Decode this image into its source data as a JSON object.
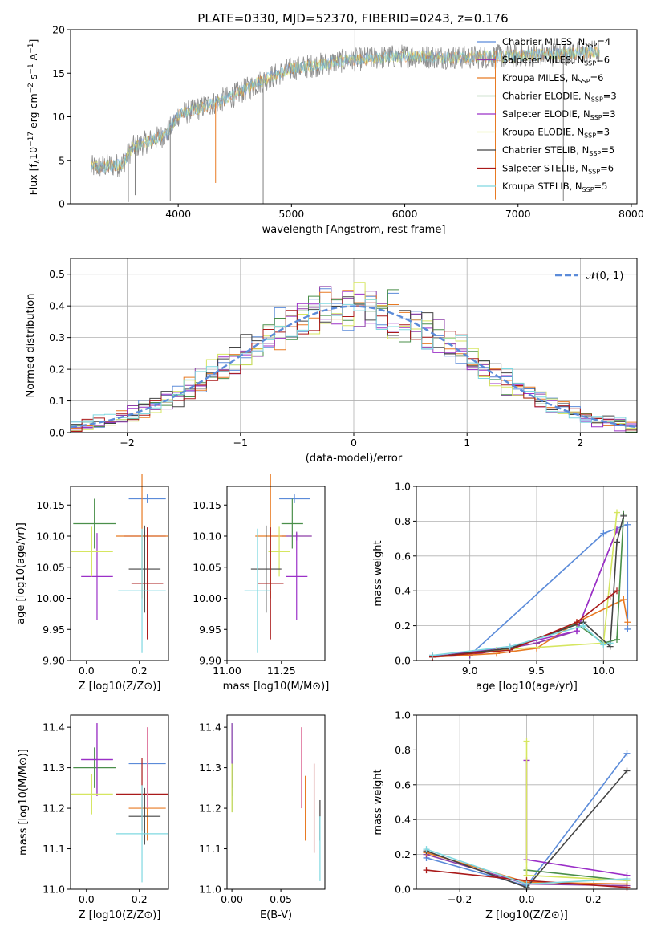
{
  "figure": {
    "title": "PLATE=0330, MJD=52370, FIBERID=0243, z=0.176"
  },
  "colors": {
    "Chabrier MILES": "#5b8bd9",
    "Salpeter MILES": "#8e3ea8",
    "Kroupa MILES": "#e87a23",
    "Chabrier ELODIE": "#4a8f4a",
    "Salpeter ELODIE": "#9b30c8",
    "Kroupa ELODIE": "#d6e660",
    "Chabrier STELIB": "#444444",
    "Salpeter STELIB": "#aa1a1a",
    "Kroupa STELIB": "#7fd8e0",
    "data": "#808080",
    "extra": "#e07aa0",
    "normal": "#5b8bd9"
  },
  "chart_data": [
    {
      "panel": "spectrum",
      "type": "line",
      "title": "PLATE=0330, MJD=52370, FIBERID=0243, z=0.176",
      "xlabel": "wavelength [Angstrom, rest frame]",
      "ylabel_parts": [
        "Flux [f",
        "λ",
        "10",
        "−17",
        " erg cm",
        "−2",
        " s",
        "−1",
        " A",
        "−1",
        "]"
      ],
      "xlim": [
        3050,
        8050
      ],
      "ylim": [
        0,
        20
      ],
      "xticks": [
        4000,
        5000,
        6000,
        7000,
        8000
      ],
      "yticks": [
        0,
        5,
        10,
        15,
        20
      ],
      "data_range": [
        3230,
        7720
      ],
      "envelope": [
        [
          3230,
          4.2
        ],
        [
          3500,
          4.5
        ],
        [
          3600,
          6.5
        ],
        [
          3900,
          8.0
        ],
        [
          4000,
          10.2
        ],
        [
          4300,
          11.5
        ],
        [
          4500,
          12.5
        ],
        [
          4800,
          14.5
        ],
        [
          5000,
          15.5
        ],
        [
          5500,
          16.5
        ],
        [
          6000,
          17.0
        ],
        [
          6500,
          16.8
        ],
        [
          7000,
          17.0
        ],
        [
          7500,
          17.3
        ],
        [
          7720,
          17.5
        ]
      ],
      "spikes": [
        [
          3560,
          0.2
        ],
        [
          3620,
          1.0
        ],
        [
          3930,
          0.3
        ],
        [
          4330,
          2.4
        ],
        [
          4750,
          0.0
        ],
        [
          5560,
          20.0
        ],
        [
          6800,
          0.5
        ],
        [
          7400,
          0.3
        ]
      ],
      "legend": [
        {
          "label": "Chabrier MILES, N",
          "n": "4"
        },
        {
          "label": "Salpeter MILES, N",
          "n": "6"
        },
        {
          "label": "Kroupa MILES, N",
          "n": "6"
        },
        {
          "label": "Chabrier ELODIE, N",
          "n": "3"
        },
        {
          "label": "Salpeter ELODIE, N",
          "n": "3"
        },
        {
          "label": "Kroupa ELODIE, N",
          "n": "3"
        },
        {
          "label": "Chabrier STELIB, N",
          "n": "5"
        },
        {
          "label": "Salpeter STELIB, N",
          "n": "6"
        },
        {
          "label": "Kroupa STELIB, N",
          "n": "5"
        }
      ],
      "legend_sub": "SSP",
      "legend_loc": "right"
    },
    {
      "panel": "residuals",
      "type": "line",
      "xlabel": "(data-model)/error",
      "ylabel": "Normed distribution",
      "xlim": [
        -2.5,
        2.5
      ],
      "ylim": [
        0,
        0.55
      ],
      "xticks": [
        -2,
        -1,
        0,
        1,
        2
      ],
      "yticks": [
        0.0,
        0.1,
        0.2,
        0.3,
        0.4,
        0.5
      ],
      "grid": true,
      "bin_width": 0.1,
      "legend": [
        "𝒩(0, 1)"
      ],
      "legend_loc": "top-right",
      "histogram_models": [
        "Chabrier MILES",
        "Salpeter MILES",
        "Kroupa MILES",
        "Chabrier ELODIE",
        "Salpeter ELODIE",
        "Kroupa ELODIE",
        "Chabrier STELIB",
        "Salpeter STELIB",
        "Kroupa STELIB"
      ]
    },
    {
      "panel": "age_vs_Z",
      "type": "scatter",
      "xlabel": "Z [log10(Z/Z⊙)]",
      "ylabel": "age [log10(age/yr)]",
      "xlim": [
        -0.06,
        0.31
      ],
      "ylim": [
        9.9,
        10.18
      ],
      "xticks": [
        0.0,
        0.2
      ],
      "yticks": [
        9.9,
        9.95,
        10.0,
        10.05,
        10.1,
        10.15
      ],
      "points": [
        {
          "m": "Chabrier MILES",
          "x": 0.23,
          "xerr": 0.07,
          "y": 10.16,
          "yerr": 0.007
        },
        {
          "m": "Salpeter MILES",
          "x": 0.22,
          "xerr": 0.08,
          "y": 10.1,
          "yerr": 0.007
        },
        {
          "m": "Kroupa MILES",
          "x": 0.21,
          "xerr": 0.1,
          "y": 10.1,
          "yerr": 0.1
        },
        {
          "m": "Chabrier ELODIE",
          "x": 0.03,
          "xerr": 0.08,
          "y": 10.12,
          "yerr": 0.04
        },
        {
          "m": "Salpeter ELODIE",
          "x": 0.04,
          "xerr": 0.06,
          "y": 10.035,
          "yerr": 0.07
        },
        {
          "m": "Kroupa ELODIE",
          "x": 0.02,
          "xerr": 0.08,
          "y": 10.075,
          "yerr": 0.04
        },
        {
          "m": "Chabrier STELIB",
          "x": 0.22,
          "xerr": 0.06,
          "y": 10.047,
          "yerr": 0.07
        },
        {
          "m": "Salpeter STELIB",
          "x": 0.23,
          "xerr": 0.06,
          "y": 10.024,
          "yerr": 0.09
        },
        {
          "m": "Kroupa STELIB",
          "x": 0.21,
          "xerr": 0.09,
          "y": 10.012,
          "yerr": 0.1
        }
      ]
    },
    {
      "panel": "age_vs_mass",
      "type": "scatter",
      "xlabel": "mass [log10(M/M⊙)]",
      "ylabel": "",
      "xlim": [
        11.0,
        11.45
      ],
      "ylim": [
        9.9,
        10.18
      ],
      "xticks": [
        11.0,
        11.25
      ],
      "yticks": [
        9.9,
        9.95,
        10.0,
        10.05,
        10.1,
        10.15
      ],
      "points": [
        {
          "m": "Chabrier MILES",
          "x": 11.31,
          "xerr": 0.07,
          "y": 10.16,
          "yerr": 0.007
        },
        {
          "m": "Salpeter MILES",
          "x": 11.32,
          "xerr": 0.07,
          "y": 10.1,
          "yerr": 0.007
        },
        {
          "m": "Kroupa MILES",
          "x": 11.2,
          "xerr": 0.07,
          "y": 10.1,
          "yerr": 0.1
        },
        {
          "m": "Chabrier ELODIE",
          "x": 11.3,
          "xerr": 0.05,
          "y": 10.12,
          "yerr": 0.04
        },
        {
          "m": "Salpeter ELODIE",
          "x": 11.32,
          "xerr": 0.05,
          "y": 10.035,
          "yerr": 0.07
        },
        {
          "m": "Kroupa ELODIE",
          "x": 11.24,
          "xerr": 0.05,
          "y": 10.075,
          "yerr": 0.04
        },
        {
          "m": "Chabrier STELIB",
          "x": 11.18,
          "xerr": 0.07,
          "y": 10.047,
          "yerr": 0.07
        },
        {
          "m": "Salpeter STELIB",
          "x": 11.2,
          "xerr": 0.06,
          "y": 10.024,
          "yerr": 0.09
        },
        {
          "m": "Kroupa STELIB",
          "x": 11.14,
          "xerr": 0.06,
          "y": 10.012,
          "yerr": 0.1
        }
      ]
    },
    {
      "panel": "weight_vs_age",
      "type": "line",
      "xlabel": "age [log10(age/yr)]",
      "ylabel": "mass weight",
      "xlim": [
        8.6,
        10.25
      ],
      "ylim": [
        0,
        1.0
      ],
      "xticks": [
        9.0,
        9.5,
        10.0
      ],
      "yticks": [
        0.0,
        0.2,
        0.4,
        0.6,
        0.8,
        1.0
      ],
      "grid": true,
      "series": [
        {
          "m": "Chabrier MILES",
          "pts": [
            [
              8.72,
              0.03
            ],
            [
              9.0,
              0.03
            ],
            [
              10.0,
              0.73
            ],
            [
              10.18,
              0.78
            ],
            [
              10.18,
              0.18
            ]
          ]
        },
        {
          "m": "Salpeter MILES",
          "pts": [
            [
              8.72,
              0.02
            ],
            [
              9.0,
              0.03
            ],
            [
              9.5,
              0.1
            ],
            [
              9.8,
              0.17
            ],
            [
              10.1,
              0.75
            ]
          ]
        },
        {
          "m": "Kroupa MILES",
          "pts": [
            [
              8.72,
              0.02
            ],
            [
              9.2,
              0.04
            ],
            [
              9.5,
              0.07
            ],
            [
              9.8,
              0.22
            ],
            [
              10.15,
              0.35
            ],
            [
              10.18,
              0.22
            ]
          ]
        },
        {
          "m": "Chabrier ELODIE",
          "pts": [
            [
              8.72,
              0.02
            ],
            [
              9.3,
              0.07
            ],
            [
              9.8,
              0.21
            ],
            [
              10.0,
              0.1
            ],
            [
              10.1,
              0.12
            ],
            [
              10.15,
              0.84
            ]
          ]
        },
        {
          "m": "Salpeter ELODIE",
          "pts": [
            [
              8.72,
              0.02
            ],
            [
              9.3,
              0.08
            ],
            [
              9.8,
              0.17
            ],
            [
              10.1,
              0.75
            ]
          ]
        },
        {
          "m": "Kroupa ELODIE",
          "pts": [
            [
              8.72,
              0.02
            ],
            [
              9.2,
              0.06
            ],
            [
              10.0,
              0.1
            ],
            [
              10.1,
              0.85
            ]
          ]
        },
        {
          "m": "Chabrier STELIB",
          "pts": [
            [
              8.72,
              0.02
            ],
            [
              9.3,
              0.07
            ],
            [
              9.85,
              0.22
            ],
            [
              10.05,
              0.08
            ],
            [
              10.1,
              0.68
            ],
            [
              10.15,
              0.83
            ]
          ]
        },
        {
          "m": "Salpeter STELIB",
          "pts": [
            [
              8.72,
              0.02
            ],
            [
              9.3,
              0.06
            ],
            [
              9.8,
              0.22
            ],
            [
              10.05,
              0.37
            ],
            [
              10.1,
              0.4
            ]
          ]
        },
        {
          "m": "Kroupa STELIB",
          "pts": [
            [
              8.72,
              0.03
            ],
            [
              9.3,
              0.08
            ],
            [
              9.85,
              0.2
            ],
            [
              10.0,
              0.09
            ],
            [
              10.05,
              0.1
            ]
          ]
        }
      ]
    },
    {
      "panel": "mass_vs_Z",
      "type": "scatter",
      "xlabel": "Z [log10(Z/Z⊙)]",
      "ylabel": "mass [log10(M/M⊙)]",
      "xlim": [
        -0.06,
        0.31
      ],
      "ylim": [
        11.0,
        11.43
      ],
      "xticks": [
        0.0,
        0.2
      ],
      "yticks": [
        11.0,
        11.1,
        11.2,
        11.3,
        11.4
      ],
      "points": [
        {
          "m": "Chabrier MILES",
          "x": 0.23,
          "xerr": 0.07,
          "y": 11.31,
          "yerr": 0.01
        },
        {
          "m": "Salpeter MILES",
          "x": 0.04,
          "xerr": 0.06,
          "y": 11.32,
          "yerr": 0.09
        },
        {
          "m": "Kroupa MILES",
          "x": 0.23,
          "xerr": 0.07,
          "y": 11.2,
          "yerr": 0.08
        },
        {
          "m": "Chabrier ELODIE",
          "x": 0.03,
          "xerr": 0.08,
          "y": 11.3,
          "yerr": 0.05
        },
        {
          "m": "Salpeter ELODIE",
          "x": 0.04,
          "xerr": 0.06,
          "y": 11.32,
          "yerr": 0.09
        },
        {
          "m": "Kroupa ELODIE",
          "x": 0.02,
          "xerr": 0.08,
          "y": 11.235,
          "yerr": 0.05
        },
        {
          "m": "Chabrier STELIB",
          "x": 0.22,
          "xerr": 0.06,
          "y": 11.18,
          "yerr": 0.07
        },
        {
          "m": "Salpeter STELIB",
          "x": 0.21,
          "xerr": 0.1,
          "y": 11.235,
          "yerr": 0.09
        },
        {
          "m": "Kroupa STELIB",
          "x": 0.21,
          "xerr": 0.1,
          "y": 11.137,
          "yerr": 0.12
        },
        {
          "m": "extra",
          "x": 0.23,
          "xerr": 0.0,
          "y": 11.3,
          "yerr": 0.1
        }
      ]
    },
    {
      "panel": "mass_vs_ebv",
      "type": "scatter",
      "xlabel": "E(B-V)",
      "ylabel": "",
      "xlim": [
        -0.005,
        0.095
      ],
      "ylim": [
        11.0,
        11.43
      ],
      "xticks": [
        0.0,
        0.05
      ],
      "yticks": [
        11.0,
        11.1,
        11.2,
        11.3,
        11.4
      ],
      "points": [
        {
          "m": "Chabrier MILES",
          "x": 0.0,
          "xerr": 0.0,
          "y": 11.32,
          "yerr": 0.09
        },
        {
          "m": "Salpeter MILES",
          "x": 0.0,
          "xerr": 0.0,
          "y": 11.33,
          "yerr": 0.08
        },
        {
          "m": "Kroupa MILES",
          "x": 0.075,
          "xerr": 0.0,
          "y": 11.2,
          "yerr": 0.08
        },
        {
          "m": "Chabrier ELODIE",
          "x": 0.001,
          "xerr": 0.0,
          "y": 11.25,
          "yerr": 0.06
        },
        {
          "m": "Kroupa ELODIE",
          "x": 0.0,
          "xerr": 0.0,
          "y": 11.25,
          "yerr": 0.06
        },
        {
          "m": "Chabrier STELIB",
          "x": 0.09,
          "xerr": 0.0,
          "y": 11.17,
          "yerr": 0.05
        },
        {
          "m": "Salpeter STELIB",
          "x": 0.084,
          "xerr": 0.0,
          "y": 11.2,
          "yerr": 0.11
        },
        {
          "m": "Kroupa STELIB",
          "x": 0.09,
          "xerr": 0.0,
          "y": 11.1,
          "yerr": 0.08
        },
        {
          "m": "extra",
          "x": 0.071,
          "xerr": 0.0,
          "y": 11.3,
          "yerr": 0.1
        }
      ]
    },
    {
      "panel": "weight_vs_Z",
      "type": "line",
      "xlabel": "Z [log10(Z/Z⊙)]",
      "ylabel": "mass weight",
      "xlim": [
        -0.33,
        0.33
      ],
      "ylim": [
        0,
        1.0
      ],
      "xticks": [
        -0.2,
        0.0,
        0.2
      ],
      "yticks": [
        0.0,
        0.2,
        0.4,
        0.6,
        0.8,
        1.0
      ],
      "grid": true,
      "series": [
        {
          "m": "Chabrier MILES",
          "pts": [
            [
              -0.3,
              0.18
            ],
            [
              0.0,
              0.02
            ],
            [
              0.3,
              0.78
            ]
          ]
        },
        {
          "m": "Salpeter MILES",
          "pts": [
            [
              -0.3,
              0.2
            ],
            [
              0.0,
              0.03
            ],
            [
              0.3,
              0.02
            ]
          ]
        },
        {
          "m": "Kroupa MILES",
          "pts": [
            [
              -0.3,
              0.21
            ],
            [
              0.0,
              0.04
            ],
            [
              0.3,
              0.03
            ]
          ]
        },
        {
          "m": "Chabrier ELODIE",
          "pts": [
            [
              0.0,
              0.11
            ],
            [
              0.3,
              0.05
            ]
          ]
        },
        {
          "m": "Salpeter ELODIE",
          "pts": [
            [
              0.0,
              0.74
            ],
            [
              0.0,
              0.17
            ],
            [
              0.3,
              0.08
            ]
          ]
        },
        {
          "m": "Kroupa ELODIE",
          "pts": [
            [
              0.0,
              0.85
            ],
            [
              0.0,
              0.08
            ],
            [
              0.3,
              0.05
            ]
          ]
        },
        {
          "m": "Chabrier STELIB",
          "pts": [
            [
              -0.3,
              0.22
            ],
            [
              0.0,
              0.01
            ],
            [
              0.3,
              0.68
            ]
          ]
        },
        {
          "m": "Salpeter STELIB",
          "pts": [
            [
              -0.3,
              0.11
            ],
            [
              0.0,
              0.05
            ],
            [
              0.3,
              0.01
            ]
          ]
        },
        {
          "m": "Kroupa STELIB",
          "pts": [
            [
              -0.3,
              0.23
            ],
            [
              0.0,
              0.03
            ],
            [
              0.3,
              0.06
            ]
          ]
        }
      ]
    }
  ]
}
